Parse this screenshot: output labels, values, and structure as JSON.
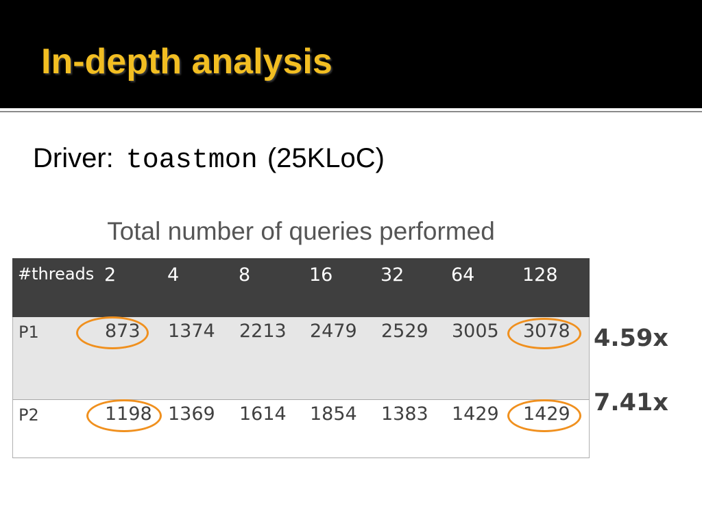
{
  "slide": {
    "title": "In-depth analysis",
    "driver": {
      "label": "Driver:",
      "name": "toastmon",
      "size": "(25KLoC)"
    },
    "colors": {
      "title_color": "#f2be22",
      "title_bar": "#000000",
      "table_header_bg": "#3f3f3f",
      "p1_row_bg": "#e6e6e6",
      "highlight_ring": "#f0901e"
    }
  },
  "table": {
    "title": "Total number of queries performed",
    "header": {
      "label": "#threads",
      "values": [
        "2",
        "4",
        "8",
        "16",
        "32",
        "64",
        "128"
      ]
    },
    "rows": [
      {
        "label": "P1",
        "values": [
          "873",
          "1374",
          "2213",
          "2479",
          "2529",
          "3005",
          "3078"
        ],
        "ratio": "4.59x"
      },
      {
        "label": "P2",
        "values": [
          "1198",
          "1369",
          "1614",
          "1854",
          "1383",
          "1429",
          "1429"
        ],
        "ratio": "7.41x"
      }
    ]
  }
}
